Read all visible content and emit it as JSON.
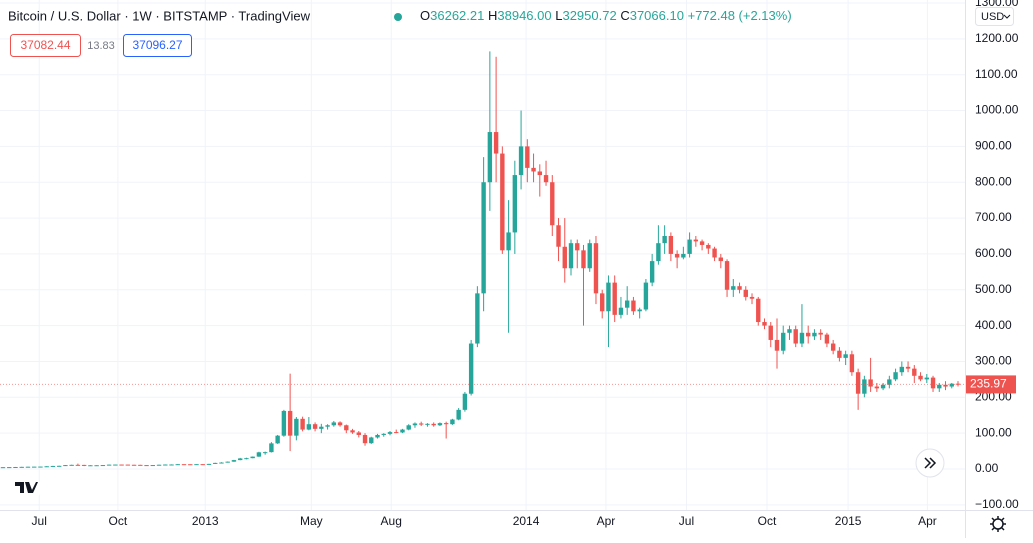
{
  "header": {
    "symbol": "Bitcoin / U.S. Dollar · 1W · BITSTAMP · TradingView",
    "ohlc": [
      {
        "label": "O",
        "value": "36262.21"
      },
      {
        "label": "H",
        "value": "38946.00"
      },
      {
        "label": "L",
        "value": "32950.72"
      },
      {
        "label": "C",
        "value": "37066.10"
      }
    ],
    "change": "+772.48 (+2.13%)",
    "bid": "37082.44",
    "spread": "13.83",
    "ask": "37096.27",
    "currency": "USD"
  },
  "chart_data": {
    "type": "candlestick",
    "up_color": "#26a69a",
    "down_color": "#ef5350",
    "grid": true,
    "ylim": [
      -100,
      1300
    ],
    "yticks": [
      {
        "value": -100,
        "label": "−100.00"
      },
      {
        "value": 0,
        "label": "0.00"
      },
      {
        "value": 100,
        "label": "100.00"
      },
      {
        "value": 200,
        "label": "200.00"
      },
      {
        "value": 300,
        "label": "300.00"
      },
      {
        "value": 400,
        "label": "400.00"
      },
      {
        "value": 500,
        "label": "500.00"
      },
      {
        "value": 600,
        "label": "600.00"
      },
      {
        "value": 700,
        "label": "700.00"
      },
      {
        "value": 800,
        "label": "800.00"
      },
      {
        "value": 900,
        "label": "900.00"
      },
      {
        "value": 1000,
        "label": "1000.00"
      },
      {
        "value": 1100,
        "label": "1100.00"
      },
      {
        "value": 1200,
        "label": "1200.00"
      },
      {
        "value": 1300,
        "label": "1300.00"
      }
    ],
    "xticks": [
      {
        "value": 5.8,
        "label": "Jul"
      },
      {
        "value": 18.4,
        "label": "Oct"
      },
      {
        "value": 32.4,
        "label": "2013"
      },
      {
        "value": 49.4,
        "label": "May"
      },
      {
        "value": 62.2,
        "label": "Aug"
      },
      {
        "value": 83.8,
        "label": "2014"
      },
      {
        "value": 96.6,
        "label": "Apr"
      },
      {
        "value": 109.5,
        "label": "Jul"
      },
      {
        "value": 122.4,
        "label": "Oct"
      },
      {
        "value": 135.4,
        "label": "2015"
      },
      {
        "value": 148.1,
        "label": "Apr"
      }
    ],
    "ohlc": [
      [
        5.0,
        5.2,
        4.9,
        5.1
      ],
      [
        5.1,
        5.4,
        5.0,
        5.3
      ],
      [
        5.3,
        5.7,
        5.2,
        5.6
      ],
      [
        5.6,
        6.1,
        5.5,
        6.0
      ],
      [
        5.9,
        6.5,
        5.8,
        6.4
      ],
      [
        6.4,
        6.7,
        6.2,
        6.6
      ],
      [
        6.6,
        7.0,
        6.5,
        6.8
      ],
      [
        6.8,
        7.8,
        6.7,
        7.6
      ],
      [
        7.6,
        8.8,
        7.5,
        8.5
      ],
      [
        8.5,
        9.2,
        8.3,
        8.9
      ],
      [
        8.9,
        11.2,
        8.8,
        10.9
      ],
      [
        10.9,
        12.0,
        10.6,
        11.6
      ],
      [
        11.6,
        15.0,
        11.0,
        11.4
      ],
      [
        11.4,
        11.6,
        8.0,
        10.1
      ],
      [
        10.1,
        10.8,
        9.9,
        10.4
      ],
      [
        10.4,
        10.8,
        10.2,
        10.5
      ],
      [
        10.5,
        11.2,
        10.4,
        11.0
      ],
      [
        11.0,
        12.4,
        10.9,
        12.2
      ],
      [
        12.2,
        12.6,
        12.0,
        12.4
      ],
      [
        12.4,
        12.5,
        12.1,
        12.3
      ],
      [
        12.3,
        12.4,
        11.6,
        11.8
      ],
      [
        11.8,
        11.9,
        11.3,
        11.6
      ],
      [
        11.6,
        11.7,
        10.6,
        10.9
      ],
      [
        10.9,
        11.1,
        10.7,
        10.8
      ],
      [
        10.8,
        11.2,
        10.7,
        11.0
      ],
      [
        11.0,
        12.1,
        10.9,
        11.9
      ],
      [
        11.9,
        12.8,
        11.8,
        12.5
      ],
      [
        12.5,
        12.9,
        12.4,
        12.6
      ],
      [
        12.6,
        13.6,
        12.5,
        13.4
      ],
      [
        13.4,
        13.6,
        13.2,
        13.3
      ],
      [
        13.3,
        13.5,
        13.1,
        13.2
      ],
      [
        13.2,
        13.6,
        13.1,
        13.5
      ],
      [
        13.5,
        13.8,
        13.3,
        13.4
      ],
      [
        13.4,
        14.4,
        13.3,
        14.2
      ],
      [
        14.2,
        17.5,
        14.0,
        17.0
      ],
      [
        17.0,
        19.0,
        16.5,
        18.0
      ],
      [
        18.0,
        21.0,
        17.8,
        20.5
      ],
      [
        20.5,
        25.5,
        20.0,
        24.8
      ],
      [
        24.8,
        31.0,
        24.5,
        29.5
      ],
      [
        29.5,
        31.5,
        27.0,
        30.2
      ],
      [
        30.2,
        35.0,
        30.0,
        34.5
      ],
      [
        34.5,
        48.0,
        34.0,
        46.5
      ],
      [
        46.5,
        48.5,
        40.0,
        47.0
      ],
      [
        47.0,
        75.0,
        46.0,
        71.5
      ],
      [
        71.5,
        95,
        70,
        93
      ],
      [
        93,
        165,
        90,
        162
      ],
      [
        162,
        266,
        50,
        93
      ],
      [
        93,
        145,
        80,
        140
      ],
      [
        140,
        146,
        105,
        110
      ],
      [
        110,
        145,
        108,
        125
      ],
      [
        125,
        130,
        105,
        112
      ],
      [
        112,
        126,
        100,
        118
      ],
      [
        118,
        125,
        110,
        122
      ],
      [
        122,
        134,
        118,
        130
      ],
      [
        130,
        133,
        118,
        122
      ],
      [
        122,
        124,
        100,
        108
      ],
      [
        108,
        112,
        98,
        102
      ],
      [
        102,
        106,
        88,
        95
      ],
      [
        95,
        100,
        65,
        72
      ],
      [
        72,
        90,
        70,
        88
      ],
      [
        88,
        98,
        85,
        95
      ],
      [
        95,
        100,
        90,
        98
      ],
      [
        98,
        106,
        94,
        103
      ],
      [
        103,
        110,
        100,
        102
      ],
      [
        102,
        112,
        100,
        110
      ],
      [
        110,
        125,
        108,
        122
      ],
      [
        122,
        130,
        115,
        127
      ],
      [
        127,
        132,
        120,
        124
      ],
      [
        124,
        128,
        118,
        126
      ],
      [
        126,
        130,
        118,
        122
      ],
      [
        122,
        130,
        120,
        128
      ],
      [
        128,
        132,
        85,
        125
      ],
      [
        125,
        140,
        123,
        138
      ],
      [
        138,
        170,
        136,
        165
      ],
      [
        165,
        215,
        160,
        210
      ],
      [
        210,
        360,
        205,
        350
      ],
      [
        350,
        510,
        340,
        490
      ],
      [
        490,
        870,
        440,
        800
      ],
      [
        800,
        1165,
        720,
        940
      ],
      [
        940,
        1150,
        800,
        880
      ],
      [
        880,
        900,
        600,
        610
      ],
      [
        610,
        750,
        380,
        660
      ],
      [
        660,
        860,
        600,
        820
      ],
      [
        820,
        1000,
        780,
        900
      ],
      [
        900,
        920,
        800,
        840
      ],
      [
        840,
        880,
        800,
        830
      ],
      [
        830,
        850,
        760,
        820
      ],
      [
        820,
        860,
        790,
        800
      ],
      [
        800,
        820,
        650,
        680
      ],
      [
        680,
        700,
        580,
        620
      ],
      [
        620,
        700,
        520,
        560
      ],
      [
        560,
        640,
        540,
        630
      ],
      [
        630,
        640,
        560,
        610
      ],
      [
        610,
        625,
        400,
        560
      ],
      [
        560,
        640,
        550,
        630
      ],
      [
        630,
        650,
        460,
        490
      ],
      [
        490,
        500,
        420,
        440
      ],
      [
        440,
        540,
        340,
        520
      ],
      [
        520,
        540,
        410,
        430
      ],
      [
        430,
        480,
        420,
        450
      ],
      [
        450,
        510,
        430,
        470
      ],
      [
        470,
        480,
        430,
        440
      ],
      [
        440,
        450,
        420,
        445
      ],
      [
        445,
        530,
        440,
        520
      ],
      [
        520,
        600,
        510,
        580
      ],
      [
        580,
        680,
        570,
        630
      ],
      [
        630,
        680,
        600,
        650
      ],
      [
        650,
        660,
        580,
        600
      ],
      [
        600,
        610,
        560,
        590
      ],
      [
        590,
        620,
        585,
        600
      ],
      [
        600,
        660,
        590,
        640
      ],
      [
        640,
        650,
        620,
        635
      ],
      [
        635,
        640,
        610,
        625
      ],
      [
        625,
        630,
        600,
        615
      ],
      [
        615,
        620,
        580,
        590
      ],
      [
        590,
        600,
        560,
        580
      ],
      [
        580,
        585,
        480,
        500
      ],
      [
        500,
        530,
        480,
        510
      ],
      [
        510,
        520,
        490,
        500
      ],
      [
        500,
        510,
        470,
        480
      ],
      [
        480,
        490,
        460,
        475
      ],
      [
        475,
        480,
        400,
        410
      ],
      [
        410,
        420,
        390,
        400
      ],
      [
        400,
        410,
        340,
        360
      ],
      [
        360,
        420,
        280,
        330
      ],
      [
        330,
        400,
        320,
        380
      ],
      [
        380,
        400,
        360,
        390
      ],
      [
        390,
        400,
        340,
        350
      ],
      [
        350,
        460,
        340,
        380
      ],
      [
        380,
        400,
        350,
        370
      ],
      [
        370,
        390,
        360,
        380
      ],
      [
        380,
        390,
        360,
        375
      ],
      [
        375,
        380,
        340,
        350
      ],
      [
        350,
        360,
        320,
        330
      ],
      [
        330,
        340,
        300,
        310
      ],
      [
        310,
        330,
        290,
        320
      ],
      [
        320,
        330,
        260,
        270
      ],
      [
        270,
        280,
        165,
        210
      ],
      [
        210,
        260,
        200,
        250
      ],
      [
        250,
        310,
        215,
        230
      ],
      [
        230,
        240,
        215,
        225
      ],
      [
        225,
        240,
        220,
        235
      ],
      [
        235,
        260,
        225,
        250
      ],
      [
        250,
        280,
        245,
        270
      ],
      [
        270,
        300,
        260,
        285
      ],
      [
        285,
        300,
        270,
        280
      ],
      [
        280,
        290,
        240,
        260
      ],
      [
        260,
        270,
        245,
        250
      ],
      [
        250,
        265,
        240,
        255
      ],
      [
        255,
        260,
        215,
        225
      ],
      [
        225,
        240,
        215,
        235
      ],
      [
        235,
        245,
        220,
        230
      ],
      [
        230,
        240,
        225,
        238
      ],
      [
        238,
        245,
        230,
        235.97
      ]
    ]
  }
}
